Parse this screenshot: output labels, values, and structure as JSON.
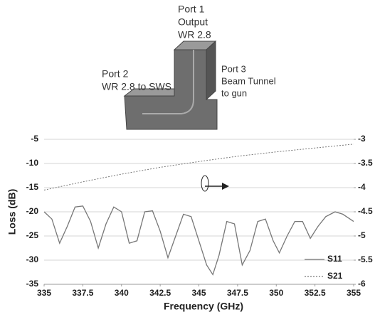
{
  "diagram": {
    "labels": [
      "Port 1",
      "Output",
      "WR 2.8",
      "Port 2",
      "WR 2.8 to SWS",
      "Port 3",
      "Beam Tunnel",
      "to gun"
    ]
  },
  "chart_data": {
    "type": "line",
    "x_label": "Frequency (GHz)",
    "y_label": "Loss (dB)",
    "xlim": [
      335,
      355
    ],
    "xticks": [
      335,
      337.5,
      340,
      342.5,
      345,
      347.5,
      350,
      352.5,
      355
    ],
    "ylim": [
      -35,
      -5
    ],
    "yticks": [
      -5,
      -10,
      -15,
      -20,
      -25,
      -30,
      -35
    ],
    "y2lim": [
      -6,
      -3
    ],
    "y2ticks": [
      -3,
      -3.5,
      -4,
      -4.5,
      -5,
      -5.5,
      -6
    ],
    "grid": true,
    "series": [
      {
        "name": "S11",
        "color": "#777777",
        "style": "solid",
        "x": [
          335,
          335.5,
          336,
          336.5,
          337,
          337.5,
          338,
          338.5,
          339,
          339.5,
          340,
          340.5,
          341,
          341.5,
          342,
          342.5,
          343,
          343.5,
          344,
          344.5,
          345,
          345.5,
          345.9,
          346.3,
          346.8,
          347.3,
          347.8,
          348.3,
          348.8,
          349.3,
          349.8,
          350.2,
          350.7,
          351.2,
          351.7,
          352.2,
          352.7,
          353.2,
          353.8,
          354.3,
          355
        ],
        "values": [
          -20,
          -21.5,
          -26.5,
          -23,
          -19,
          -18.8,
          -22,
          -27.5,
          -22.5,
          -19,
          -20,
          -26.5,
          -26,
          -20,
          -19.8,
          -24,
          -29.5,
          -25,
          -20.5,
          -21,
          -26,
          -31,
          -33,
          -29,
          -22,
          -22.5,
          -31,
          -28,
          -22,
          -21.5,
          -26,
          -28.5,
          -25,
          -22,
          -22,
          -25.5,
          -23,
          -21,
          -20,
          -20.5,
          -22
        ]
      },
      {
        "name": "S21",
        "color": "#777777",
        "style": "dotted",
        "axis": "y2",
        "x": [
          335,
          337.5,
          340,
          342.5,
          345,
          347.5,
          350,
          352.5,
          355
        ],
        "values": [
          -4.05,
          -3.88,
          -3.72,
          -3.58,
          -3.46,
          -3.35,
          -3.26,
          -3.18,
          -3.1
        ]
      }
    ]
  }
}
